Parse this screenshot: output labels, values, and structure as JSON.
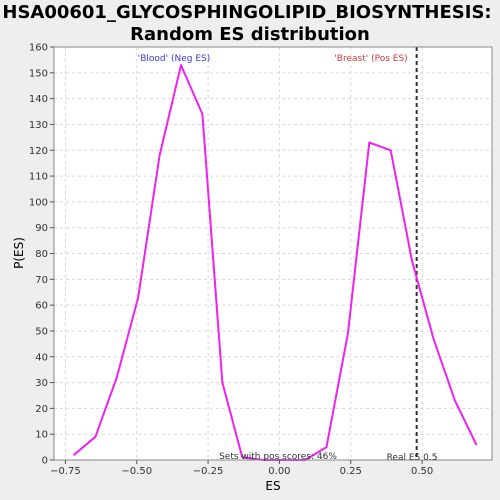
{
  "chart_data": {
    "type": "line",
    "title_line1": "HSA00601_GLYCOSPHINGOLIPID_BIOSYNTHESIS:",
    "title_line2": "Random ES distribution",
    "xlabel": "ES",
    "ylabel": "P(ES)",
    "xlim": [
      -0.79,
      0.745
    ],
    "ylim": [
      0,
      160
    ],
    "xticks": [
      -0.75,
      -0.5,
      -0.25,
      0.0,
      0.25,
      0.5
    ],
    "xtick_labels": [
      "−0.75",
      "−0.50",
      "−0.25",
      "0.00",
      "0.25",
      "0.50"
    ],
    "yticks": [
      0,
      10,
      20,
      30,
      40,
      50,
      60,
      70,
      80,
      90,
      100,
      110,
      120,
      130,
      140,
      150,
      160
    ],
    "grid": true,
    "series": [
      {
        "color": "#ee22ee",
        "x": [
          -0.72,
          -0.645,
          -0.57,
          -0.495,
          -0.42,
          -0.345,
          -0.27,
          -0.2,
          -0.13,
          -0.055,
          0.02,
          0.09,
          0.165,
          0.24,
          0.315,
          0.39,
          0.465,
          0.54,
          0.615,
          0.69
        ],
        "y": [
          2,
          9,
          32,
          63,
          118,
          153,
          134,
          30,
          1,
          0,
          0,
          0,
          5,
          49,
          123,
          120,
          77,
          47,
          23,
          6
        ]
      }
    ],
    "annotations": {
      "neg_label": "'Blood' (Neg ES)",
      "pos_label": "'Breast' (Pos ES)",
      "pos_scores": "Sets with pos scores: 46%",
      "real_es": "Real ES 0.5"
    },
    "real_es_value": 0.481,
    "colors": {
      "neg_label": "#3a3ad0",
      "pos_label": "#d03a3a",
      "marker_line": "#333333"
    }
  }
}
